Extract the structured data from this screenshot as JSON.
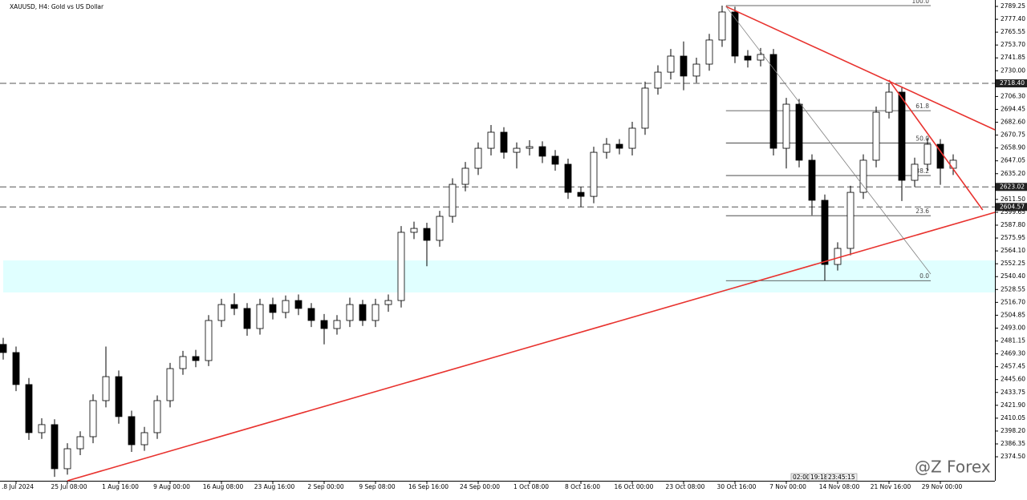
{
  "chart_data": {
    "type": "candlestick",
    "title": "XAUUSD, H4:  Gold vs US Dollar",
    "watermark": "@Z Forex",
    "timer": [
      "02:00",
      "19:18",
      "23:45:15"
    ],
    "xlim": [
      -0.25,
      77.25
    ],
    "ylim": [
      2352.4,
      2795.15
    ],
    "xticks": [
      {
        "value": 1,
        "label": ".8 Jul 2024"
      },
      {
        "value": 5,
        "label": "25 Jul 08:00"
      },
      {
        "value": 9,
        "label": "1 Aug 16:00"
      },
      {
        "value": 13,
        "label": "9 Aug 00:00"
      },
      {
        "value": 17,
        "label": "16 Aug 08:00"
      },
      {
        "value": 21,
        "label": "23 Aug 16:00"
      },
      {
        "value": 25,
        "label": "2 Sep 00:00"
      },
      {
        "value": 29,
        "label": "9 Sep 08:00"
      },
      {
        "value": 33,
        "label": "16 Sep 16:00"
      },
      {
        "value": 37,
        "label": "24 Sep 00:00"
      },
      {
        "value": 41,
        "label": "1 Oct 08:00"
      },
      {
        "value": 45,
        "label": "8 Oct 16:00"
      },
      {
        "value": 49,
        "label": "16 Oct 00:00"
      },
      {
        "value": 53,
        "label": "23 Oct 08:00"
      },
      {
        "value": 57,
        "label": "30 Oct 16:00"
      },
      {
        "value": 61,
        "label": "7 Nov 00:00"
      },
      {
        "value": 65,
        "label": "14 Nov 08:00"
      },
      {
        "value": 69,
        "label": "21 Nov 16:00"
      },
      {
        "value": 73,
        "label": "29 Nov 00:00"
      }
    ],
    "yticks": [
      2789.25,
      {
        "value": 2777.4,
        "label": "2777.40"
      },
      2765.55,
      {
        "value": 2753.7,
        "label": "2753.70"
      },
      2741.85,
      {
        "value": 2730,
        "label": "2730.00"
      },
      2718.15,
      {
        "value": 2706.3,
        "label": "2706.30"
      },
      2694.45,
      {
        "value": 2682.6,
        "label": "2682.60"
      },
      2670.75,
      {
        "value": 2658.9,
        "label": "2658.90"
      },
      2647.05,
      {
        "value": 2635.2,
        "label": "2635.20"
      },
      {
        "value": 2611.5,
        "label": "2611.50"
      },
      2599.65,
      {
        "value": 2587.8,
        "label": "2587.80"
      },
      2575.95,
      {
        "value": 2564.1,
        "label": "2564.10"
      },
      2552.25,
      {
        "value": 2540.4,
        "label": "2540.40"
      },
      2528.55,
      {
        "value": 2516.7,
        "label": "2516.70"
      },
      2504.85,
      {
        "value": 2493,
        "label": "2493.00"
      },
      2481.15,
      {
        "value": 2469.3,
        "label": "2469.30"
      },
      2457.45,
      {
        "value": 2445.6,
        "label": "2445.60"
      },
      2433.75,
      {
        "value": 2421.9,
        "label": "2421.90"
      },
      2410.05,
      {
        "value": 2398.2,
        "label": "2398.20"
      },
      2386.35,
      {
        "value": 2374.5,
        "label": "2374.50"
      }
    ],
    "open": [
      2478.0,
      2470.5,
      2441.0,
      2396.7,
      2404.1,
      2363.5,
      2381.9,
      2393.0,
      2426.2,
      2448.3,
      2411.5,
      2385.6,
      2396.7,
      2426.2,
      2455.7,
      2466.8,
      2463.1,
      2500.0,
      2514.7,
      2511.1,
      2492.6,
      2514.7,
      2507.4,
      2518.4,
      2511.1,
      2500.0,
      2492.6,
      2500.0,
      2514.7,
      2500.0,
      2514.7,
      2518.4,
      2581.2,
      2584.8,
      2573.8,
      2595.9,
      2625.4,
      2640.2,
      2658.6,
      2673.4,
      2654.9,
      2658.6,
      2660.1,
      2651.3,
      2643.9,
      2618.0,
      2614.3,
      2654.9,
      2662.3,
      2658.6,
      2677.1,
      2714.0,
      2728.7,
      2743.5,
      2725.1,
      2736.1,
      2758.3,
      2784.1,
      2743.5,
      2739.8,
      2745.0,
      2658.6,
      2699.2,
      2647.6,
      2610.7,
      2551.6,
      2566.4,
      2618.0,
      2647.6,
      2691.8,
      2710.3,
      2629.1,
      2643.9,
      2662.3,
      2640.2
    ],
    "high": [
      2484.0,
      2476.0,
      2447.0,
      2410.0,
      2409.0,
      2387.0,
      2398.0,
      2432.0,
      2476.0,
      2454.0,
      2417.0,
      2402.0,
      2431.0,
      2461.0,
      2472.0,
      2473.0,
      2505.0,
      2520.0,
      2525.0,
      2516.0,
      2520.0,
      2521.0,
      2523.0,
      2524.0,
      2516.0,
      2506.0,
      2505.0,
      2521.0,
      2519.0,
      2520.0,
      2524.0,
      2587.0,
      2591.0,
      2590.0,
      2601.0,
      2631.0,
      2646.0,
      2664.0,
      2680.0,
      2678.0,
      2664.0,
      2666.0,
      2665.0,
      2657.0,
      2649.0,
      2623.0,
      2660.0,
      2668.0,
      2667.0,
      2683.0,
      2720.0,
      2735.0,
      2750.0,
      2757.0,
      2742.0,
      2764.0,
      2790.0,
      2789.0,
      2749.0,
      2751.0,
      2750.0,
      2705.0,
      2704.0,
      2653.0,
      2616.0,
      2572.0,
      2624.0,
      2653.0,
      2697.0,
      2718.4,
      2715.0,
      2650.0,
      2668.0,
      2667.0,
      2653.0
    ],
    "low": [
      2464.0,
      2435.0,
      2390.0,
      2391.0,
      2356.0,
      2358.0,
      2376.0,
      2387.0,
      2420.0,
      2405.0,
      2379.0,
      2380.0,
      2391.0,
      2420.0,
      2450.0,
      2457.0,
      2458.0,
      2494.0,
      2505.0,
      2486.0,
      2487.0,
      2501.0,
      2502.0,
      2505.0,
      2494.0,
      2478.0,
      2487.0,
      2494.0,
      2495.0,
      2494.0,
      2508.0,
      2512.0,
      2575.0,
      2550.0,
      2568.0,
      2590.0,
      2619.0,
      2634.0,
      2652.0,
      2649.0,
      2640.0,
      2652.0,
      2645.0,
      2638.0,
      2612.0,
      2604.6,
      2608.0,
      2649.0,
      2653.0,
      2652.0,
      2671.0,
      2708.0,
      2722.0,
      2712.0,
      2719.0,
      2730.0,
      2752.0,
      2737.0,
      2733.0,
      2734.0,
      2652.0,
      2640.0,
      2641.0,
      2597.0,
      2536.7,
      2546.0,
      2560.0,
      2612.0,
      2641.0,
      2686.0,
      2610.0,
      2623.0,
      2638.0,
      2625.0,
      2634.0
    ],
    "close": [
      2470.5,
      2441.0,
      2396.7,
      2404.1,
      2363.5,
      2381.9,
      2393.0,
      2426.2,
      2448.3,
      2411.5,
      2385.6,
      2396.7,
      2426.2,
      2455.7,
      2466.8,
      2463.1,
      2500.0,
      2514.7,
      2511.1,
      2492.6,
      2514.7,
      2507.4,
      2518.4,
      2511.1,
      2500.0,
      2492.6,
      2500.0,
      2514.7,
      2500.0,
      2514.7,
      2518.4,
      2581.2,
      2584.8,
      2573.8,
      2595.9,
      2625.4,
      2640.2,
      2658.6,
      2673.4,
      2654.9,
      2658.6,
      2660.1,
      2651.3,
      2643.9,
      2618.0,
      2614.3,
      2654.9,
      2662.3,
      2658.6,
      2677.1,
      2714.0,
      2728.7,
      2743.5,
      2725.1,
      2736.1,
      2758.3,
      2784.1,
      2743.5,
      2739.8,
      2745.0,
      2658.6,
      2699.2,
      2647.6,
      2610.7,
      2551.6,
      2566.4,
      2618.0,
      2647.6,
      2691.8,
      2710.3,
      2629.1,
      2643.9,
      2662.3,
      2640.2,
      2647.6
    ],
    "zone": {
      "y": [
        2525.8,
        2555.3
      ],
      "color": "#e0ffff"
    },
    "levels": [
      {
        "value": 2718.4,
        "label": "2718.40"
      },
      {
        "value": 2623.02,
        "label": "2623.02"
      },
      {
        "value": 2604.57,
        "label": "2604.57"
      }
    ],
    "trendlines": [
      {
        "color": "#e8322e",
        "x": [
          5,
          77.25
        ],
        "y": [
          2352.4,
          2599.6
        ]
      },
      {
        "color": "#e8322e",
        "x": [
          56.3,
          77.25
        ],
        "y": [
          2789.2,
          2675.6
        ]
      },
      {
        "color": "#e8322e",
        "x": [
          69,
          76.3
        ],
        "y": [
          2721.4,
          2601.8
        ]
      },
      {
        "color": "#808080",
        "x": [
          56.3,
          72.25
        ],
        "y": [
          2789.2,
          2542.8
        ]
      }
    ],
    "fib": {
      "x": [
        56.3,
        72.25
      ],
      "levels": [
        {
          "label": "100.0",
          "price": 2790.0
        },
        {
          "label": "61.8",
          "price": 2693.2
        },
        {
          "label": "50.0",
          "price": 2663.4
        },
        {
          "label": "38.2",
          "price": 2633.5
        },
        {
          "label": "23.6",
          "price": 2596.5
        },
        {
          "label": "0.0",
          "price": 2536.7
        }
      ]
    }
  }
}
